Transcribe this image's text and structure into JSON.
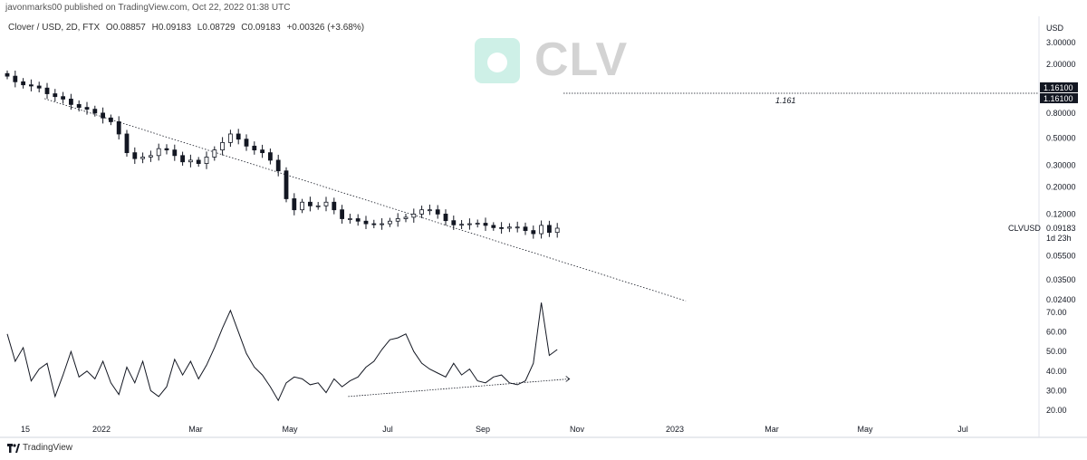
{
  "header": {
    "published": "javonmarks00 published on TradingView.com, Oct 22, 2022 01:38 UTC"
  },
  "legend": {
    "symbol": "Clover / USD, 2D, FTX",
    "open": "O0.08857",
    "high": "H0.09183",
    "low": "L0.08729",
    "close": "C0.09183",
    "change": "+0.00326 (+3.68%)"
  },
  "watermark": {
    "text": "CLV",
    "logo_color": "#3fc6a3"
  },
  "footer": {
    "brand": "TradingView"
  },
  "colors": {
    "candle": "#131722",
    "axis_text": "#131722",
    "line": "#131722"
  },
  "chart_data": [
    {
      "type": "candlestick",
      "scale": "log",
      "ylabel": "USD",
      "y_ticks": [
        3.0,
        2.0,
        0.8,
        0.5,
        0.3,
        0.2,
        0.12,
        0.055,
        0.035,
        0.024
      ],
      "y_tick_labels": [
        "3.00000",
        "2.00000",
        "0.80000",
        "0.50000",
        "0.30000",
        "0.20000",
        "0.12000",
        "0.05500",
        "0.03500",
        "0.02400"
      ],
      "x_tick_labels": [
        "15",
        "2022",
        "Mar",
        "May",
        "Jul",
        "Sep",
        "Nov",
        "2023",
        "Mar",
        "May",
        "Jul"
      ],
      "price_label": {
        "symbol": "CLVUSD",
        "value": "0.09183",
        "timer": "1d 23h"
      },
      "horizontal_level": {
        "value": 1.161,
        "label": "1.161",
        "tags": [
          "1.16100",
          "1.16100"
        ]
      },
      "trendline": {
        "start": [
          "2021-11-29",
          1.05
        ],
        "end": [
          "2022-12-31",
          0.0235
        ]
      },
      "closes": [
        1.6,
        1.44,
        1.36,
        1.33,
        1.28,
        1.15,
        1.09,
        1.04,
        0.94,
        0.89,
        0.86,
        0.8,
        0.73,
        0.68,
        0.54,
        0.38,
        0.34,
        0.35,
        0.36,
        0.41,
        0.4,
        0.36,
        0.32,
        0.33,
        0.31,
        0.35,
        0.4,
        0.46,
        0.54,
        0.49,
        0.43,
        0.4,
        0.38,
        0.33,
        0.27,
        0.16,
        0.13,
        0.15,
        0.14,
        0.14,
        0.15,
        0.13,
        0.11,
        0.11,
        0.105,
        0.1,
        0.099,
        0.1,
        0.105,
        0.11,
        0.113,
        0.12,
        0.13,
        0.13,
        0.12,
        0.106,
        0.098,
        0.099,
        0.1,
        0.101,
        0.097,
        0.093,
        0.092,
        0.094,
        0.094,
        0.088,
        0.083,
        0.097,
        0.085,
        0.092
      ]
    },
    {
      "type": "line",
      "y_ticks": [
        70.0,
        60.0,
        50.0,
        40.0,
        30.0,
        20.0
      ],
      "y_tick_labels": [
        "70.00",
        "60.00",
        "50.00",
        "40.00",
        "30.00",
        "20.00"
      ],
      "ylim": [
        15,
        75
      ],
      "values": [
        59,
        45,
        52,
        35,
        41,
        44,
        27,
        38,
        50,
        37,
        40,
        36,
        45,
        34,
        28,
        42,
        34,
        45,
        30,
        27,
        32,
        46,
        38,
        45,
        36,
        43,
        52,
        62,
        71,
        60,
        49,
        42,
        38,
        32,
        25,
        34,
        37,
        36,
        33,
        34,
        29,
        36,
        32,
        35,
        37,
        42,
        45,
        51,
        56,
        57,
        59,
        50,
        44,
        41,
        39,
        37,
        44,
        38,
        41,
        35,
        34,
        37,
        38,
        34,
        33,
        35,
        44,
        75,
        48,
        51
      ],
      "divergence_line": {
        "start": [
          "2022-06-05",
          27
        ],
        "end": [
          "2022-10-20",
          36
        ]
      }
    }
  ]
}
